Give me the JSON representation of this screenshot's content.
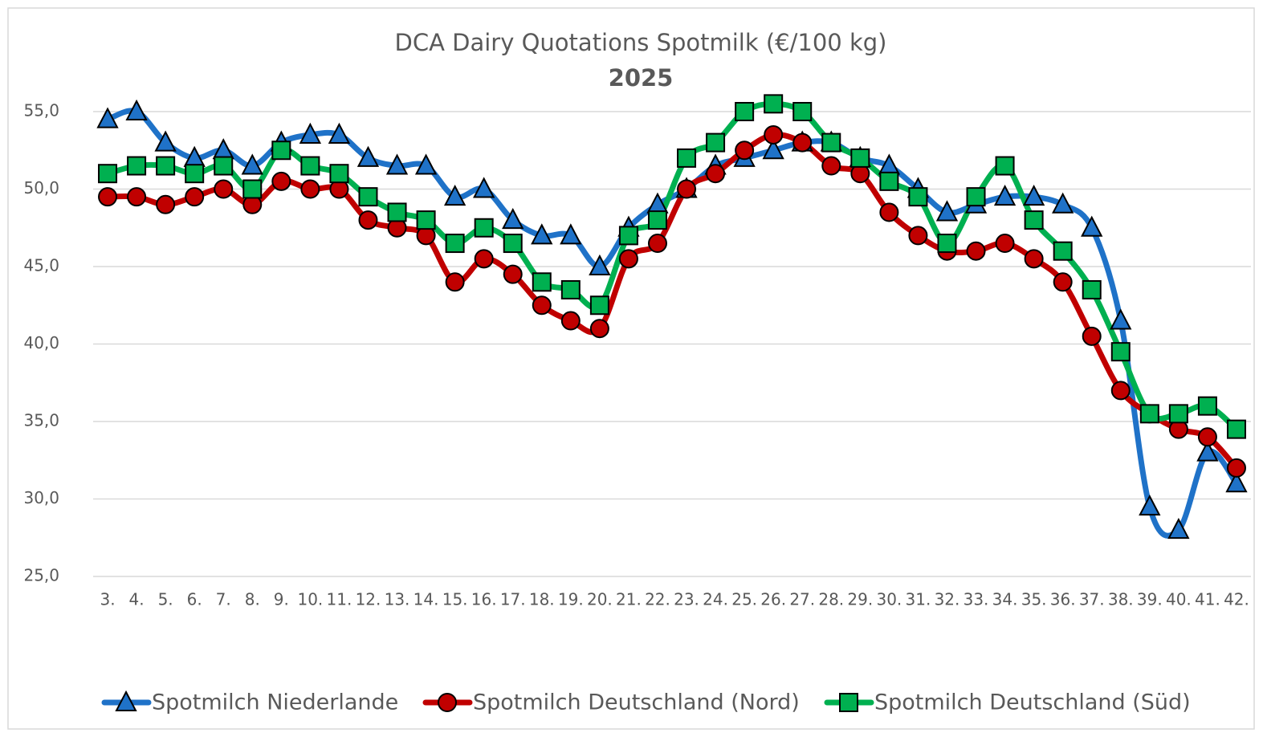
{
  "chart_data": {
    "type": "line",
    "title": "DCA Dairy Quotations Spotmilk (€/100 kg)",
    "subtitle": "2025",
    "categories": [
      "3.",
      "4.",
      "5.",
      "6.",
      "7.",
      "8.",
      "9.",
      "10.",
      "11.",
      "12.",
      "13.",
      "14.",
      "15.",
      "16.",
      "17.",
      "18.",
      "19.",
      "20.",
      "21.",
      "22.",
      "23.",
      "24.",
      "25.",
      "26.",
      "27.",
      "28.",
      "29.",
      "30.",
      "31.",
      "32.",
      "33.",
      "34.",
      "35.",
      "36.",
      "37.",
      "38.",
      "39.",
      "40.",
      "41.",
      "42."
    ],
    "series": [
      {
        "name": "Spotmilch Niederlande",
        "color": "#1f72c8",
        "marker": "triangle",
        "values": [
          54.5,
          55,
          53,
          52,
          52.5,
          51.5,
          53,
          53.5,
          53.5,
          52,
          51.5,
          51.5,
          49.5,
          50,
          48,
          47,
          47,
          45,
          47.5,
          49,
          50,
          51.5,
          52,
          52.5,
          53,
          53,
          52,
          51.5,
          50,
          48.5,
          49,
          49.5,
          49.5,
          49,
          47.5,
          41.5,
          29.5,
          28,
          33,
          31
        ]
      },
      {
        "name": "Spotmilch Deutschland (Nord)",
        "color": "#c00000",
        "marker": "circle",
        "values": [
          49.5,
          49.5,
          49,
          49.5,
          50,
          49,
          50.5,
          50,
          50,
          48,
          47.5,
          47,
          44,
          45.5,
          44.5,
          42.5,
          41.5,
          41,
          45.5,
          46.5,
          50,
          51,
          52.5,
          53.5,
          53,
          51.5,
          51,
          48.5,
          47,
          46,
          46,
          46.5,
          45.5,
          44,
          40.5,
          37,
          35.5,
          34.5,
          34,
          32
        ]
      },
      {
        "name": "Spotmilch Deutschland (Süd)",
        "color": "#00b050",
        "marker": "square",
        "values": [
          51,
          51.5,
          51.5,
          51,
          51.5,
          50,
          52.5,
          51.5,
          51,
          49.5,
          48.5,
          48,
          46.5,
          47.5,
          46.5,
          44,
          43.5,
          42.5,
          47,
          48,
          52,
          53,
          55,
          55.5,
          55,
          53,
          52,
          50.5,
          49.5,
          46.5,
          49.5,
          51.5,
          48,
          46,
          43.5,
          39.5,
          35.5,
          35.5,
          36,
          34.5
        ]
      }
    ],
    "ylim": [
      25,
      55
    ],
    "yticks": [
      {
        "value": 25,
        "label": "25,0"
      },
      {
        "value": 30,
        "label": "30,0"
      },
      {
        "value": 35,
        "label": "35,0"
      },
      {
        "value": 40,
        "label": "40,0"
      },
      {
        "value": 45,
        "label": "45,0"
      },
      {
        "value": 50,
        "label": "50,0"
      },
      {
        "value": 55,
        "label": "55,0"
      }
    ],
    "grid": true,
    "smooth": true,
    "legend": "bottom"
  }
}
